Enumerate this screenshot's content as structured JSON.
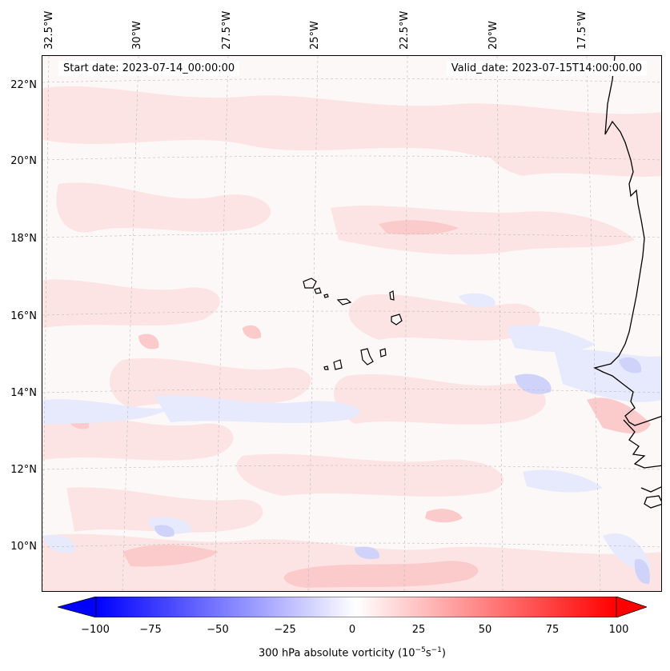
{
  "map": {
    "start_date_label": "Start date: 2023-07-14_00:00:00",
    "valid_date_label": "Valid_date: 2023-07-15T14:00:00.00",
    "longitude_labels": [
      "32.5°W",
      "30°W",
      "27.5°W",
      "25°W",
      "22.5°W",
      "20°W",
      "17.5°W"
    ],
    "latitude_labels": [
      "22°N",
      "20°N",
      "18°N",
      "16°N",
      "14°N",
      "12°N",
      "10°N"
    ],
    "colors": {
      "background_field": "#fdf6f6",
      "positive_light": "#fde3e3",
      "positive_mid": "#fbc8c8",
      "negative_light": "#e6e8fb",
      "negative_mid": "#cfd3f9",
      "coastline": "#000000",
      "gridline": "#bbbbbb"
    }
  },
  "colorbar": {
    "label_prefix": "300 hPa absolute vorticity (10",
    "label_exp1": "−5",
    "label_mid": "s",
    "label_exp2": "−1",
    "label_suffix": ")",
    "min": -100,
    "max": 100,
    "ticks": [
      "−100",
      "−75",
      "−50",
      "−25",
      "0",
      "25",
      "50",
      "75",
      "100"
    ],
    "colormap": "bwr",
    "extend": "both"
  }
}
